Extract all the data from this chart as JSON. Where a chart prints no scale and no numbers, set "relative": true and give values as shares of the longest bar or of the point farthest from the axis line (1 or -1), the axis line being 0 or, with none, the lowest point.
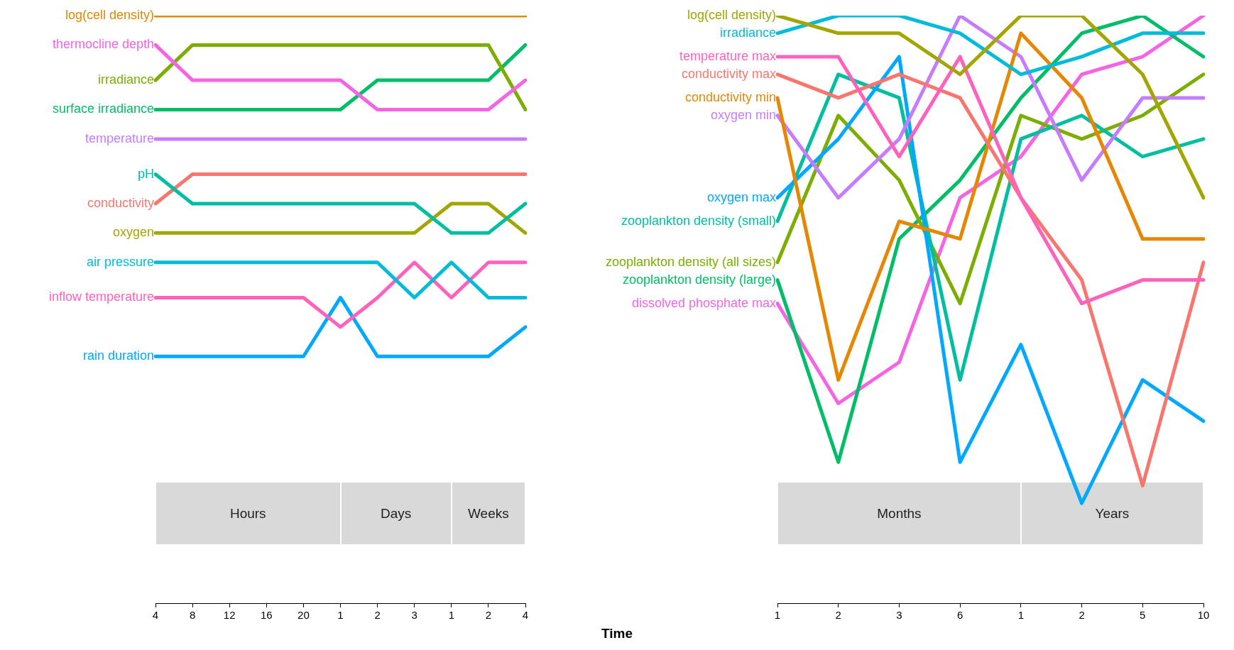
{
  "chart_data": [
    {
      "type": "line",
      "relative": true,
      "xlabel": "Time",
      "legend": false,
      "categories": [
        "4",
        "8",
        "12",
        "16",
        "20",
        "1",
        "2",
        "3",
        "1",
        "2",
        "4"
      ],
      "annotations": [
        "Hours",
        "Days",
        "Weeks"
      ],
      "series": [
        {
          "name": "log(cell density)",
          "color": "#e58700",
          "values": [
            1,
            1,
            1,
            1,
            1,
            1,
            1,
            1,
            1,
            1,
            1
          ]
        },
        {
          "name": "thermocline depth",
          "color": "#f564e3",
          "values": [
            0.95,
            0.89,
            0.89,
            0.89,
            0.89,
            0.89,
            0.84,
            0.84,
            0.84,
            0.84,
            0.89
          ]
        },
        {
          "name": "irradiance",
          "color": "#7cae00",
          "values": [
            0.89,
            0.95,
            0.95,
            0.95,
            0.95,
            0.95,
            0.95,
            0.95,
            0.95,
            0.95,
            0.84
          ]
        },
        {
          "name": "surface irradiance",
          "color": "#00be67",
          "values": [
            0.84,
            0.84,
            0.84,
            0.84,
            0.84,
            0.84,
            0.89,
            0.89,
            0.89,
            0.89,
            0.95
          ]
        },
        {
          "name": "temperature",
          "color": "#c77cff",
          "values": [
            0.79,
            0.79,
            0.79,
            0.79,
            0.79,
            0.79,
            0.79,
            0.79,
            0.79,
            0.79,
            0.79
          ]
        },
        {
          "name": "pH",
          "color": "#00bfa0",
          "values": [
            0.73,
            0.68,
            0.68,
            0.68,
            0.68,
            0.68,
            0.68,
            0.68,
            0.63,
            0.63,
            0.68
          ]
        },
        {
          "name": "conductivity",
          "color": "#f8766d",
          "values": [
            0.68,
            0.73,
            0.73,
            0.73,
            0.73,
            0.73,
            0.73,
            0.73,
            0.73,
            0.73,
            0.73
          ]
        },
        {
          "name": "oxygen",
          "color": "#a3a500",
          "values": [
            0.63,
            0.63,
            0.63,
            0.63,
            0.63,
            0.63,
            0.63,
            0.63,
            0.68,
            0.68,
            0.63
          ]
        },
        {
          "name": "air pressure",
          "color": "#00bcd8",
          "values": [
            0.58,
            0.58,
            0.58,
            0.58,
            0.58,
            0.58,
            0.58,
            0.52,
            0.58,
            0.52,
            0.52
          ]
        },
        {
          "name": "inflow temperature",
          "color": "#ff62bc",
          "values": [
            0.52,
            0.52,
            0.52,
            0.52,
            0.52,
            0.47,
            0.52,
            0.58,
            0.52,
            0.58,
            0.58
          ]
        },
        {
          "name": "rain duration",
          "color": "#00a9ff",
          "values": [
            0.42,
            0.42,
            0.42,
            0.42,
            0.42,
            0.52,
            0.42,
            0.42,
            0.42,
            0.42,
            0.47
          ]
        }
      ]
    },
    {
      "type": "line",
      "relative": true,
      "legend": false,
      "categories": [
        "1",
        "2",
        "3",
        "6",
        "1",
        "2",
        "5",
        "10"
      ],
      "annotations": [
        "Months",
        "Years"
      ],
      "series": [
        {
          "name": "log(cell density)",
          "color": "#a3a500",
          "values": [
            1,
            0.97,
            0.97,
            0.9,
            1,
            1,
            0.9,
            0.69
          ]
        },
        {
          "name": "irradiance",
          "color": "#00bcd8",
          "values": [
            0.97,
            1,
            1,
            0.97,
            0.9,
            0.93,
            0.97,
            0.97
          ]
        },
        {
          "name": "temperature max",
          "color": "#ff62bc",
          "values": [
            0.93,
            0.93,
            0.76,
            0.93,
            0.69,
            0.51,
            0.55,
            0.55
          ]
        },
        {
          "name": "conductivity max",
          "color": "#f8766d",
          "values": [
            0.9,
            0.86,
            0.9,
            0.86,
            0.69,
            0.55,
            0.2,
            0.58
          ]
        },
        {
          "name": "conductivity min",
          "color": "#e58700",
          "values": [
            0.86,
            0.38,
            0.65,
            0.62,
            0.97,
            0.86,
            0.62,
            0.62
          ]
        },
        {
          "name": "oxygen min",
          "color": "#c77cff",
          "values": [
            0.83,
            0.69,
            0.79,
            1,
            0.93,
            0.72,
            0.86,
            0.86
          ]
        },
        {
          "name": "oxygen max",
          "color": "#00a9ff",
          "values": [
            0.69,
            0.79,
            0.93,
            0.24,
            0.44,
            0.17,
            0.38,
            0.31
          ]
        },
        {
          "name": "zooplankton density (small)",
          "color": "#00bfa0",
          "values": [
            0.65,
            0.9,
            0.86,
            0.38,
            0.79,
            0.83,
            0.76,
            0.79
          ]
        },
        {
          "name": "zooplankton density (all sizes)",
          "color": "#7cae00",
          "values": [
            0.58,
            0.83,
            0.72,
            0.51,
            0.83,
            0.79,
            0.83,
            0.9
          ]
        },
        {
          "name": "zooplankton density (large)",
          "color": "#00be67",
          "values": [
            0.55,
            0.24,
            0.62,
            0.72,
            0.86,
            0.97,
            1,
            0.93
          ]
        },
        {
          "name": "dissolved phosphate max",
          "color": "#f564e3",
          "values": [
            0.51,
            0.34,
            0.41,
            0.69,
            0.76,
            0.9,
            0.93,
            1
          ]
        }
      ]
    }
  ]
}
